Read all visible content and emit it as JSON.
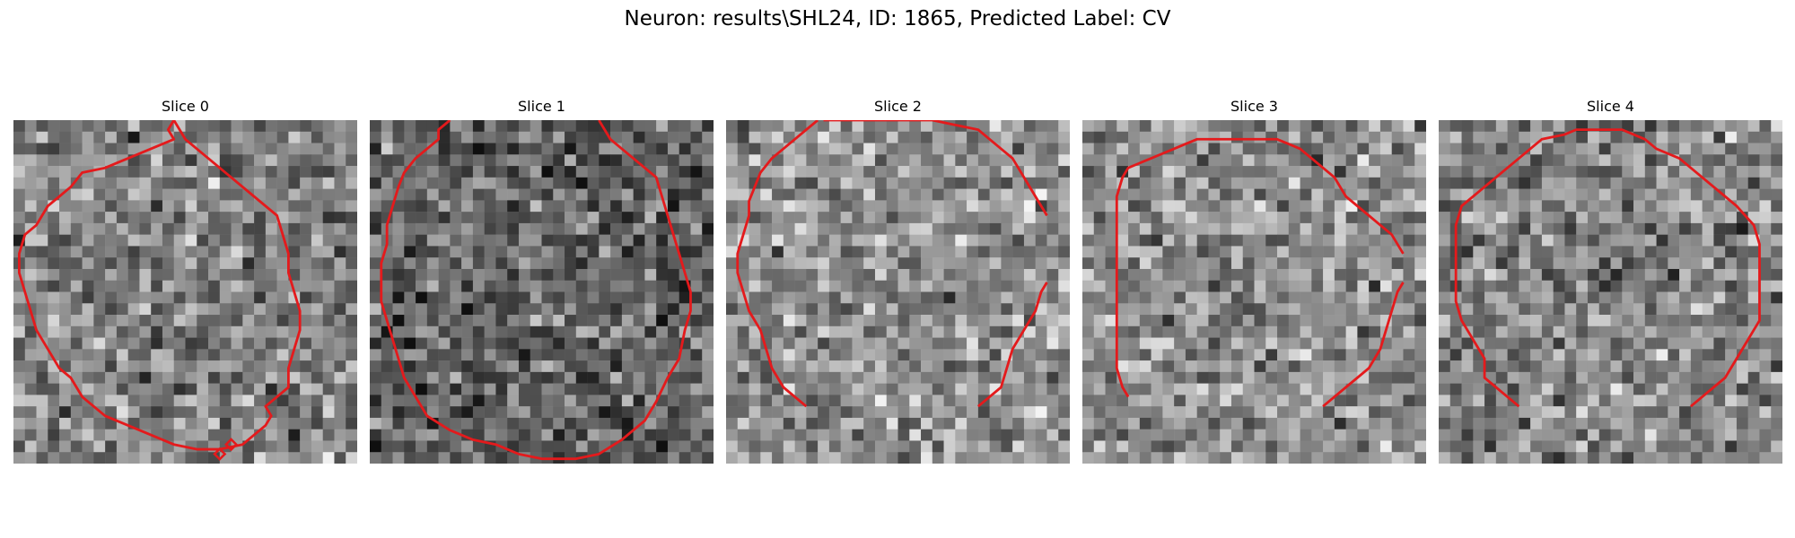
{
  "figure": {
    "title": "Neuron: results\\SHL24, ID: 1865, Predicted Label: CV"
  },
  "contour_color": "#e41a1c",
  "grid_size": 30,
  "slices": [
    {
      "label": "Slice 0",
      "seed": 11,
      "base_gray": 128,
      "contour": [
        [
          14,
          0
        ],
        [
          13.5,
          1
        ],
        [
          14,
          2
        ],
        [
          12,
          3
        ],
        [
          10,
          4
        ],
        [
          8,
          5
        ],
        [
          6,
          5.5
        ],
        [
          5,
          7
        ],
        [
          4,
          8
        ],
        [
          3,
          9
        ],
        [
          2.5,
          10
        ],
        [
          2,
          11
        ],
        [
          1,
          12
        ],
        [
          0.5,
          14
        ],
        [
          0.5,
          16
        ],
        [
          1,
          18
        ],
        [
          1.5,
          20
        ],
        [
          2,
          22
        ],
        [
          3,
          24
        ],
        [
          4,
          26
        ],
        [
          5,
          27
        ],
        [
          6,
          29
        ],
        [
          7,
          30
        ],
        [
          8,
          31
        ],
        [
          10,
          32
        ],
        [
          12,
          33
        ],
        [
          14,
          34
        ],
        [
          16,
          34.5
        ],
        [
          18,
          34.5
        ],
        [
          20,
          34
        ],
        [
          21,
          33
        ],
        [
          22,
          32
        ],
        [
          22.5,
          31
        ],
        [
          22,
          30
        ],
        [
          23,
          29
        ],
        [
          24,
          28
        ],
        [
          24,
          26
        ],
        [
          24.5,
          24
        ],
        [
          25,
          22
        ],
        [
          25,
          20
        ],
        [
          24.5,
          18
        ],
        [
          24,
          16
        ],
        [
          24,
          14
        ],
        [
          23.5,
          12
        ],
        [
          23,
          10
        ],
        [
          22,
          9
        ],
        [
          21,
          8
        ],
        [
          19,
          6
        ],
        [
          17,
          4
        ],
        [
          15,
          2
        ],
        [
          14,
          0
        ]
      ],
      "extra_marks": [
        [
          18,
          35
        ],
        [
          19,
          34
        ]
      ]
    },
    {
      "label": "Slice 1",
      "seed": 23,
      "base_gray": 100,
      "contour": [
        [
          7,
          0
        ],
        [
          6,
          1
        ],
        [
          6,
          2
        ],
        [
          5,
          3
        ],
        [
          4,
          4
        ],
        [
          3,
          5.5
        ],
        [
          2.5,
          7
        ],
        [
          2,
          9
        ],
        [
          1.5,
          11
        ],
        [
          1.5,
          13
        ],
        [
          1,
          15
        ],
        [
          1,
          17
        ],
        [
          1,
          19
        ],
        [
          1.5,
          21
        ],
        [
          2,
          23
        ],
        [
          2.5,
          25
        ],
        [
          3,
          27
        ],
        [
          4,
          29
        ],
        [
          5,
          31
        ],
        [
          7,
          32.5
        ],
        [
          9,
          33.5
        ],
        [
          11,
          34
        ],
        [
          13,
          35
        ],
        [
          15,
          35.5
        ],
        [
          18,
          35.5
        ],
        [
          20,
          35
        ],
        [
          22,
          33.5
        ],
        [
          24,
          31.5
        ],
        [
          25,
          29.5
        ],
        [
          26,
          27
        ],
        [
          27,
          25
        ],
        [
          27.5,
          22
        ],
        [
          28,
          20
        ],
        [
          28,
          18
        ],
        [
          27.5,
          16
        ],
        [
          27,
          14
        ],
        [
          26.5,
          12
        ],
        [
          26,
          10
        ],
        [
          25.5,
          8
        ],
        [
          25,
          6
        ],
        [
          24,
          5
        ],
        [
          22,
          3
        ],
        [
          21,
          2
        ],
        [
          20,
          0
        ]
      ],
      "extra_marks": []
    },
    {
      "label": "Slice 2",
      "seed": 37,
      "base_gray": 145,
      "contour": [
        [
          8,
          0
        ],
        [
          7,
          1
        ],
        [
          6,
          2
        ],
        [
          5,
          3
        ],
        [
          4,
          4
        ],
        [
          3,
          5.5
        ],
        [
          2.5,
          7
        ],
        [
          2,
          8.5
        ],
        [
          2,
          10
        ],
        [
          1.5,
          12
        ],
        [
          1,
          14
        ],
        [
          1,
          16
        ],
        [
          1.5,
          18
        ],
        [
          2,
          20
        ],
        [
          3,
          22
        ],
        [
          3.5,
          24
        ],
        [
          4,
          26
        ],
        [
          5,
          28
        ],
        [
          6,
          29
        ],
        [
          7,
          30
        ]
      ],
      "contour2": [
        [
          8.5,
          0
        ],
        [
          10,
          0
        ],
        [
          12,
          0
        ],
        [
          14,
          0
        ],
        [
          16,
          0
        ],
        [
          18,
          0
        ],
        [
          20,
          0.5
        ],
        [
          22,
          1
        ],
        [
          23,
          2
        ],
        [
          24,
          3
        ],
        [
          25,
          4
        ],
        [
          25.5,
          5
        ],
        [
          26,
          6
        ],
        [
          26.5,
          7
        ],
        [
          27,
          8
        ],
        [
          27.5,
          9
        ],
        [
          28,
          10
        ]
      ],
      "contour3": [
        [
          28,
          17
        ],
        [
          27.5,
          18
        ],
        [
          27,
          20
        ],
        [
          26.5,
          21
        ],
        [
          26,
          22
        ],
        [
          25.5,
          23
        ],
        [
          25,
          24
        ],
        [
          24.5,
          26
        ],
        [
          24,
          28
        ],
        [
          23,
          29
        ],
        [
          22,
          30
        ]
      ],
      "extra_marks": []
    },
    {
      "label": "Slice 3",
      "seed": 51,
      "base_gray": 140,
      "contour": [
        [
          4,
          29
        ],
        [
          3.5,
          28
        ],
        [
          3,
          26
        ],
        [
          3,
          24
        ],
        [
          3,
          22
        ],
        [
          3,
          20
        ],
        [
          3,
          18
        ],
        [
          3,
          16
        ],
        [
          3,
          14
        ],
        [
          3,
          12
        ],
        [
          3,
          10
        ],
        [
          3,
          8
        ],
        [
          3.5,
          6
        ],
        [
          4,
          5
        ],
        [
          5,
          4.5
        ],
        [
          6,
          4
        ],
        [
          7,
          3.5
        ],
        [
          8,
          3
        ],
        [
          9,
          2.5
        ],
        [
          10,
          2
        ],
        [
          12,
          2
        ],
        [
          14,
          2
        ],
        [
          16,
          2
        ],
        [
          17,
          2
        ],
        [
          18,
          2.5
        ],
        [
          19,
          3
        ],
        [
          20,
          4
        ],
        [
          21,
          5
        ],
        [
          22,
          6
        ],
        [
          22.5,
          7
        ],
        [
          23,
          8
        ],
        [
          24,
          9
        ],
        [
          25,
          10
        ],
        [
          26,
          11
        ],
        [
          27,
          12
        ],
        [
          27.5,
          13
        ],
        [
          28,
          14
        ]
      ],
      "contour2": [
        [
          28,
          17
        ],
        [
          27.5,
          18
        ],
        [
          27,
          20
        ],
        [
          26.5,
          22
        ],
        [
          26,
          24
        ],
        [
          25,
          26
        ],
        [
          24,
          27
        ],
        [
          23,
          28
        ],
        [
          22,
          29
        ],
        [
          21,
          30
        ]
      ],
      "extra_marks": []
    },
    {
      "label": "Slice 4",
      "seed": 67,
      "base_gray": 135,
      "contour": [
        [
          7,
          30
        ],
        [
          6,
          29
        ],
        [
          5,
          28
        ],
        [
          4,
          27
        ],
        [
          4,
          25
        ],
        [
          3,
          23
        ],
        [
          2,
          21
        ],
        [
          1.5,
          19
        ],
        [
          1.5,
          17
        ],
        [
          1.5,
          15
        ],
        [
          1.5,
          13
        ],
        [
          1.5,
          11
        ],
        [
          2,
          9
        ],
        [
          3,
          8
        ],
        [
          4,
          7
        ],
        [
          5,
          6
        ],
        [
          6,
          5
        ],
        [
          7,
          4
        ],
        [
          8,
          3
        ],
        [
          9,
          2
        ],
        [
          11,
          1.5
        ],
        [
          12,
          1
        ],
        [
          14,
          1
        ],
        [
          16,
          1
        ],
        [
          17,
          1.5
        ],
        [
          18,
          2
        ],
        [
          19,
          3
        ],
        [
          20,
          3.5
        ],
        [
          21,
          4
        ],
        [
          22,
          5
        ],
        [
          23,
          6
        ],
        [
          24,
          7
        ],
        [
          25,
          8
        ],
        [
          26,
          9
        ],
        [
          27.5,
          11
        ],
        [
          28,
          13
        ],
        [
          28,
          15
        ],
        [
          28,
          17
        ],
        [
          28,
          19
        ],
        [
          28,
          21
        ],
        [
          27,
          23
        ],
        [
          26,
          25
        ],
        [
          25,
          27
        ],
        [
          24,
          28
        ],
        [
          23,
          29
        ],
        [
          22,
          30
        ]
      ],
      "extra_marks": []
    }
  ]
}
